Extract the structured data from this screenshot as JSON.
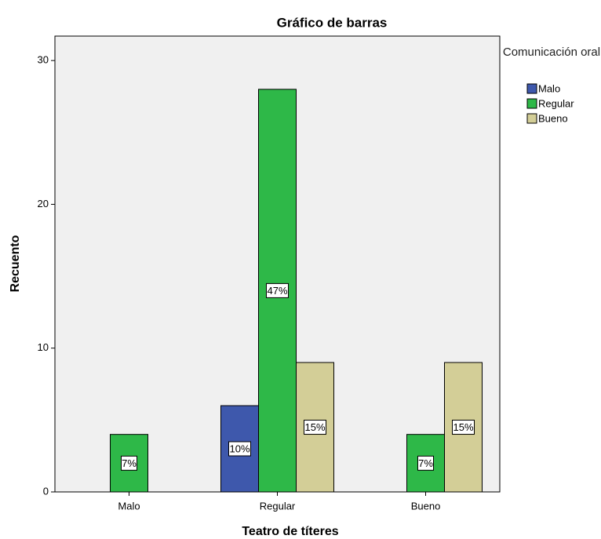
{
  "chart_data": {
    "type": "bar",
    "title": "Gráfico de barras",
    "x_label": "Teatro de títeres",
    "y_label": "Recuento",
    "legend_title": "Comunicación oral",
    "categories": [
      "Malo",
      "Regular",
      "Bueno"
    ],
    "series": [
      {
        "name": "Malo",
        "color": "#3e58ac",
        "values": [
          null,
          6,
          null
        ],
        "percent_labels": [
          null,
          "10%",
          null
        ]
      },
      {
        "name": "Regular",
        "color": "#2eb848",
        "values": [
          4,
          28,
          4
        ],
        "percent_labels": [
          "7%",
          "47%",
          "7%"
        ]
      },
      {
        "name": "Bueno",
        "color": "#d3ce97",
        "values": [
          null,
          9,
          9
        ],
        "percent_labels": [
          null,
          "15%",
          "15%"
        ]
      }
    ],
    "ylim": [
      0,
      31.7
    ],
    "yticks": [
      0,
      10,
      20,
      30
    ],
    "legend": "right"
  }
}
